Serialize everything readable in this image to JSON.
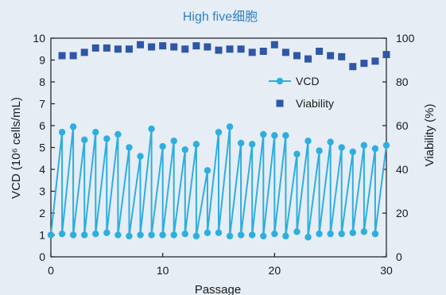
{
  "chart_data": {
    "type": "line",
    "title": "High five细胞",
    "xlabel": "Passage",
    "ylabel": "VCD (10⁶ cells/mL)",
    "ylabel_right": "Viability (%)",
    "xlim": [
      0,
      30
    ],
    "ylim": [
      0,
      10
    ],
    "ylim_right": [
      0,
      100
    ],
    "xticks": [
      0,
      10,
      20,
      30
    ],
    "yticks": [
      0,
      1,
      2,
      3,
      4,
      5,
      6,
      7,
      8,
      9,
      10
    ],
    "yticks_right": [
      0,
      20,
      40,
      60,
      80,
      100
    ],
    "grid": false,
    "legend": "right",
    "colors": {
      "title": "#2f7fc4",
      "vcd": "#2eaee0",
      "viability": "#2f56a8",
      "axis": "#1a1a1a"
    },
    "series": [
      {
        "name": "VCD",
        "axis": "left",
        "style": "line-marker",
        "x": [
          0,
          1,
          1,
          2,
          2,
          3,
          3,
          4,
          4,
          5,
          5,
          6,
          6,
          7,
          7,
          8,
          8,
          9,
          9,
          10,
          10,
          11,
          11,
          12,
          12,
          13,
          13,
          14,
          14,
          15,
          15,
          16,
          16,
          17,
          17,
          18,
          18,
          19,
          19,
          20,
          20,
          21,
          21,
          22,
          22,
          23,
          23,
          24,
          24,
          25,
          25,
          26,
          26,
          27,
          27,
          28,
          28,
          29,
          29,
          30
        ],
        "y": [
          1.0,
          5.7,
          1.05,
          5.95,
          1.0,
          5.35,
          1.0,
          5.7,
          1.05,
          5.4,
          1.1,
          5.6,
          1.0,
          5.0,
          0.95,
          4.6,
          1.0,
          5.85,
          1.0,
          5.05,
          1.0,
          5.3,
          1.0,
          4.9,
          1.05,
          5.15,
          0.95,
          3.95,
          1.1,
          5.7,
          1.1,
          5.95,
          0.95,
          5.2,
          1.0,
          5.15,
          1.0,
          5.6,
          0.95,
          5.55,
          1.05,
          5.55,
          0.95,
          4.7,
          1.15,
          5.3,
          0.9,
          4.85,
          1.05,
          5.25,
          1.05,
          5.0,
          1.05,
          4.8,
          1.1,
          5.1,
          1.15,
          4.95,
          1.05,
          5.1
        ]
      },
      {
        "name": "Viability",
        "axis": "right",
        "style": "marker",
        "x": [
          1,
          2,
          3,
          4,
          5,
          6,
          7,
          8,
          9,
          10,
          11,
          12,
          13,
          14,
          15,
          16,
          17,
          18,
          19,
          20,
          21,
          22,
          23,
          24,
          25,
          26,
          27,
          28,
          29,
          30
        ],
        "y": [
          92,
          92,
          93.5,
          95.5,
          95.5,
          95,
          95,
          97,
          96,
          96.5,
          96,
          95,
          96.5,
          96,
          94.5,
          95,
          95,
          93.5,
          94,
          97,
          93.5,
          92,
          90.5,
          94,
          92,
          91.5,
          87,
          88.5,
          89.5,
          92.5
        ]
      }
    ]
  }
}
